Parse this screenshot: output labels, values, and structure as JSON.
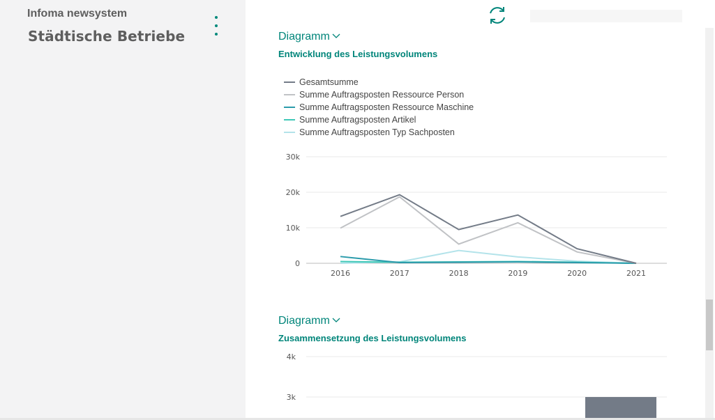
{
  "app": {
    "title": "Infoma newsystem",
    "company": "Städtische Betriebe"
  },
  "icons": {
    "menu": "more-vertical-icon",
    "refresh": "refresh-icon",
    "chevron": "chevron-down-icon"
  },
  "colors": {
    "accent": "#00857a",
    "gesamt": "#737b87",
    "person": "#c0c2c5",
    "maschine": "#2a9bab",
    "artikel": "#3fc8b8",
    "sachposten": "#b3e3ea"
  },
  "charts": [
    {
      "header": "Diagramm",
      "title": "Entwicklung des Leistungsvolumens"
    },
    {
      "header": "Diagramm",
      "title": "Zusammensetzung des Leistungsvolumens"
    }
  ],
  "chart_data": [
    {
      "type": "line",
      "title": "Entwicklung des Leistungsvolumens",
      "x": [
        "2016",
        "2017",
        "2018",
        "2019",
        "2020",
        "2021"
      ],
      "ylim": [
        0,
        30000
      ],
      "yticks": [
        "0",
        "10k",
        "20k",
        "30k"
      ],
      "grid": true,
      "legend_position": "top-left",
      "series": [
        {
          "name": "Gesamtsumme",
          "color": "#737b87",
          "values": [
            13200,
            19300,
            9500,
            13600,
            4100,
            0
          ]
        },
        {
          "name": "Summe Auftragsposten Ressource Person",
          "color": "#c0c2c5",
          "values": [
            9900,
            18700,
            5400,
            11400,
            3200,
            0
          ]
        },
        {
          "name": "Summe Auftragsposten Ressource Maschine",
          "color": "#2a9bab",
          "values": [
            1900,
            200,
            300,
            400,
            200,
            0
          ]
        },
        {
          "name": "Summe Auftragsposten Artikel",
          "color": "#3fc8b8",
          "values": [
            500,
            300,
            400,
            500,
            300,
            0
          ]
        },
        {
          "name": "Summe Auftragsposten Typ Sachposten",
          "color": "#b3e3ea",
          "values": [
            0,
            400,
            3600,
            1800,
            600,
            0
          ]
        }
      ]
    },
    {
      "type": "bar",
      "title": "Zusammensetzung des Leistungsvolumens",
      "yticks": [
        "3k",
        "4k"
      ],
      "ylim": [
        2500,
        4000
      ],
      "visible_bar_min_value": 3000
    }
  ]
}
